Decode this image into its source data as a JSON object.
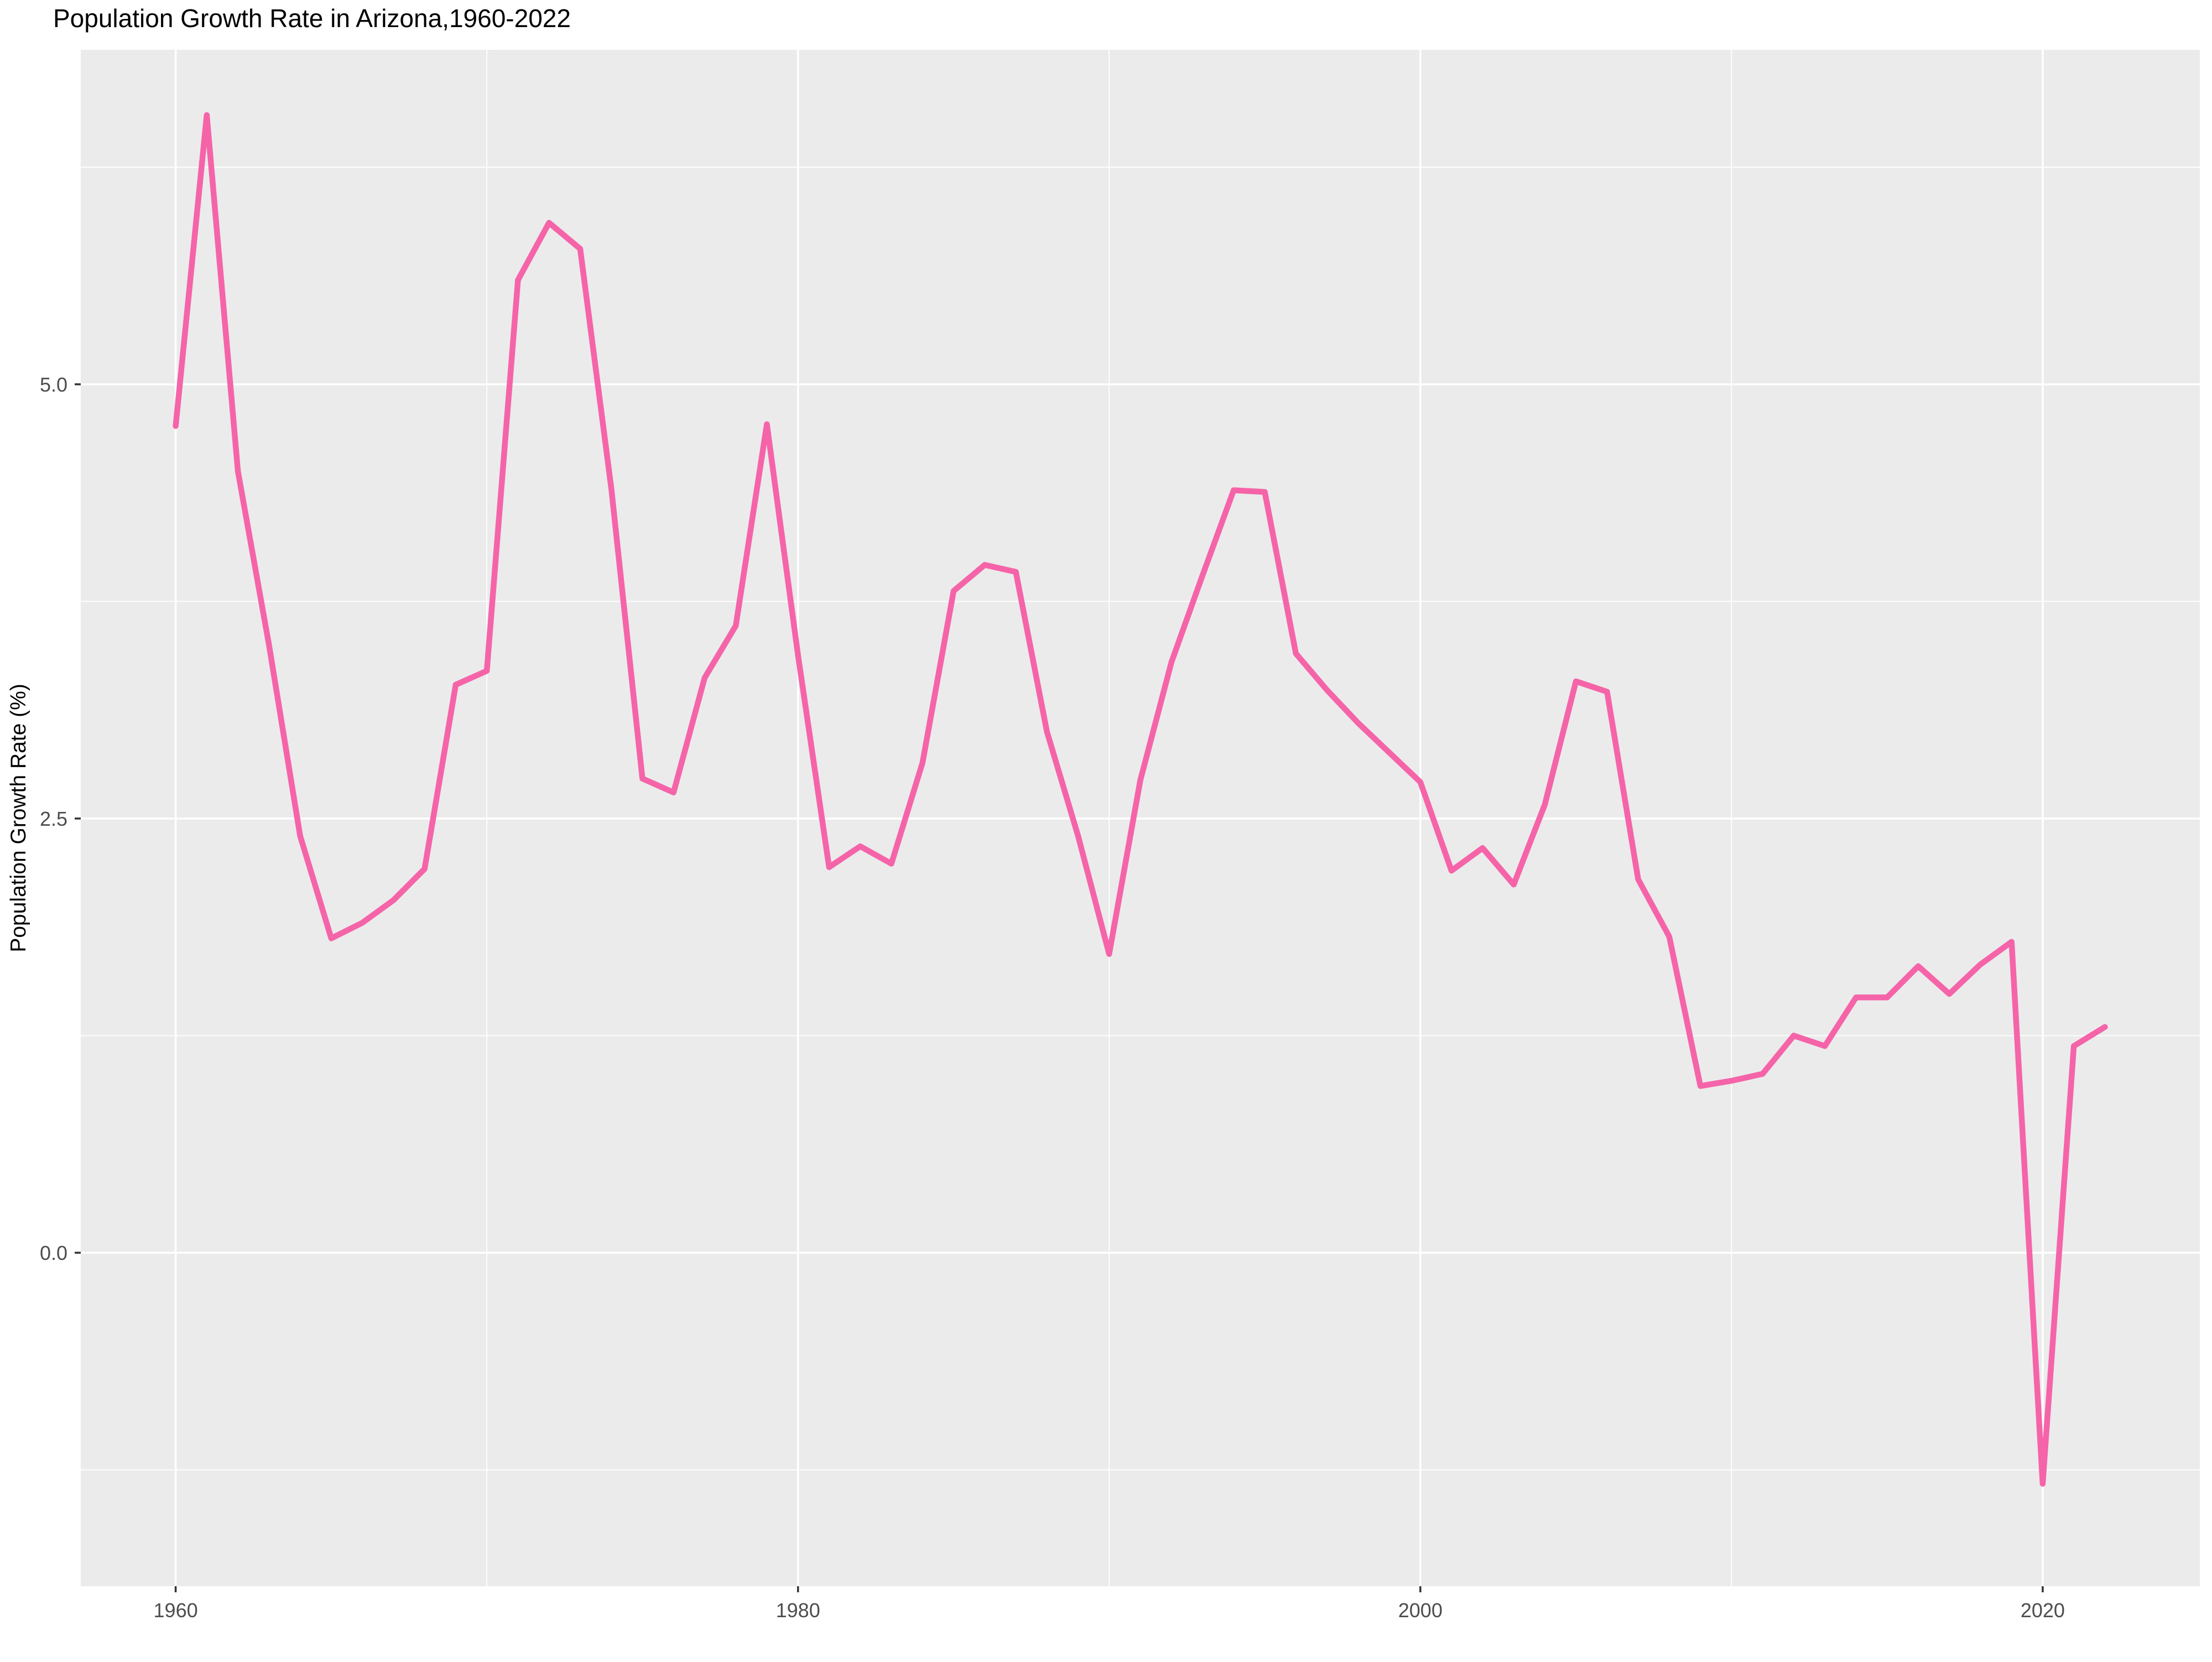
{
  "title": "Population Growth Rate in Arizona,1960-2022",
  "y_axis": {
    "label": "Population Growth Rate (%)",
    "tick_labels": [
      "5.0",
      "2.5",
      "0.0"
    ],
    "tick_values": [
      5.0,
      2.5,
      0.0
    ]
  },
  "x_axis": {
    "label": "",
    "tick_labels": [
      "1960",
      "1980",
      "2000",
      "2020"
    ],
    "tick_values": [
      1960,
      1980,
      2000,
      2020
    ]
  },
  "colors": {
    "line": "#F564A8",
    "panel_background": "#EBEBEB",
    "grid_major": "#FFFFFF",
    "grid_minor": "#FFFFFF",
    "tick_text": "#4D4D4D",
    "tick_mark": "#333333",
    "title_text": "#000000",
    "axis_label_text": "#000000",
    "page_background": "#FFFFFF"
  },
  "chart_data": {
    "type": "line",
    "title": "Population Growth Rate in Arizona,1960-2022",
    "xlabel": "",
    "ylabel": "Population Growth Rate (%)",
    "legend": "none",
    "grid": "major and minor white gridlines on grey panel",
    "xlim": [
      1956.95,
      2025.05
    ],
    "ylim": [
      -1.92,
      6.926
    ],
    "x_major_gridlines": [
      1960,
      1980,
      2000,
      2020
    ],
    "x_minor_gridlines": [
      1970,
      1990,
      2010
    ],
    "y_major_gridlines": [
      0.0,
      2.5,
      5.0
    ],
    "y_minor_gridlines": [
      -1.25,
      1.25,
      3.75,
      6.25
    ],
    "x": [
      1960,
      1961,
      1962,
      1963,
      1964,
      1965,
      1966,
      1967,
      1968,
      1969,
      1970,
      1971,
      1972,
      1973,
      1974,
      1975,
      1976,
      1977,
      1978,
      1979,
      1980,
      1981,
      1982,
      1983,
      1984,
      1985,
      1986,
      1987,
      1988,
      1989,
      1990,
      1991,
      1992,
      1993,
      1994,
      1995,
      1996,
      1997,
      1998,
      1999,
      2000,
      2001,
      2002,
      2003,
      2004,
      2005,
      2006,
      2007,
      2008,
      2009,
      2010,
      2011,
      2012,
      2013,
      2014,
      2015,
      2016,
      2017,
      2018,
      2019,
      2020,
      2021,
      2022
    ],
    "values": [
      4.76,
      6.55,
      4.5,
      3.5,
      2.4,
      1.81,
      1.9,
      2.03,
      2.21,
      3.27,
      3.35,
      5.6,
      5.93,
      5.78,
      4.4,
      2.73,
      2.65,
      3.31,
      3.61,
      4.77,
      3.44,
      2.22,
      2.34,
      2.24,
      2.82,
      3.81,
      3.96,
      3.92,
      3.0,
      2.4,
      1.72,
      2.72,
      3.4,
      3.9,
      4.39,
      4.38,
      3.45,
      3.24,
      3.05,
      2.88,
      2.71,
      2.2,
      2.33,
      2.12,
      2.58,
      3.29,
      3.23,
      2.15,
      1.82,
      0.96,
      0.99,
      1.03,
      1.25,
      1.19,
      1.47,
      1.47,
      1.65,
      1.49,
      1.66,
      1.79,
      -1.33,
      1.19,
      1.3
    ]
  }
}
